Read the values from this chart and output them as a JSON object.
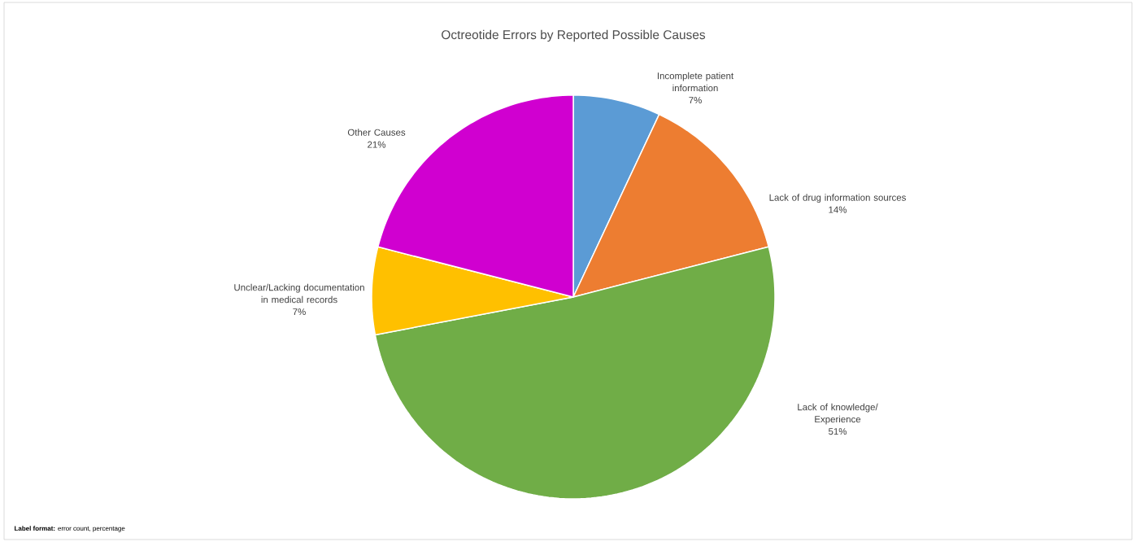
{
  "chart_data": {
    "type": "pie",
    "title": "Octreotide Errors by Reported Possible Causes",
    "categories": [
      "Incomplete patient information",
      "Lack of drug information sources",
      "Lack of knowledge/ Experience",
      "Unclear/Lacking documentation in medical records",
      "Other Causes"
    ],
    "values": [
      7,
      14,
      51,
      7,
      21
    ],
    "value_labels": [
      "7%",
      "14%",
      "51%",
      "7%",
      "21%"
    ],
    "colors": [
      "#5b9bd5",
      "#ed7d31",
      "#70ad47",
      "#ffc000",
      "#d000d0"
    ],
    "annotations": [
      "**Label format:** error count, percentage"
    ]
  }
}
